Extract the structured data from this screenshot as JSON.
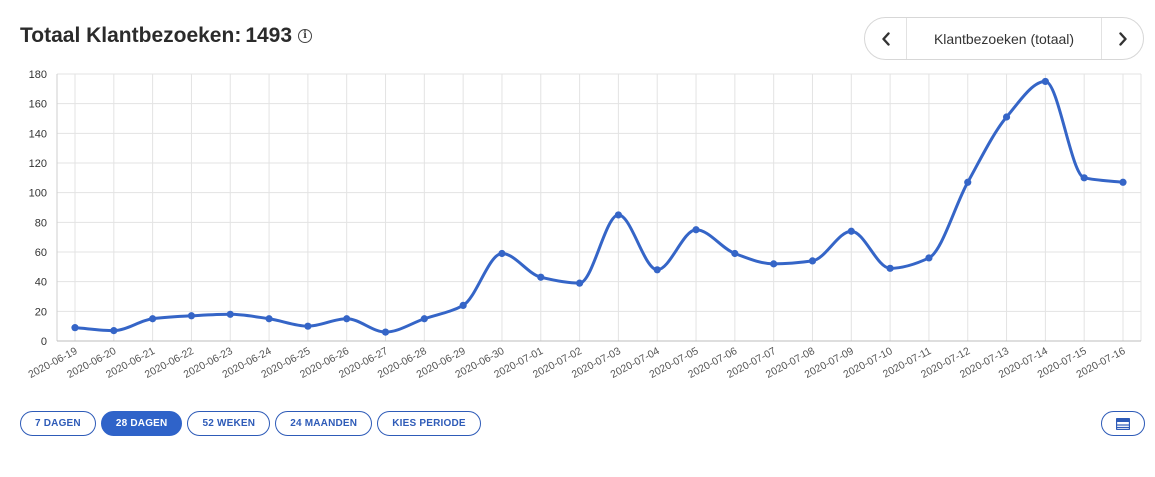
{
  "header": {
    "title": "Totaal Klantbezoeken:",
    "total": "1493"
  },
  "switcher": {
    "label": "Klantbezoeken (totaal)"
  },
  "range_buttons": [
    {
      "label": "7 DAGEN",
      "active": false
    },
    {
      "label": "28 DAGEN",
      "active": true
    },
    {
      "label": "52 WEKEN",
      "active": false
    },
    {
      "label": "24 MAANDEN",
      "active": false
    },
    {
      "label": "KIES PERIODE",
      "active": false
    }
  ],
  "colors": {
    "series": "#3565c7",
    "accent": "#2f63c9",
    "grid": "#e3e3e3"
  },
  "chart_data": {
    "type": "line",
    "smooth": true,
    "grid": true,
    "ylim": [
      0,
      180
    ],
    "yticks": [
      0,
      20,
      40,
      60,
      80,
      100,
      120,
      140,
      160,
      180
    ],
    "x": [
      "2020-06-19",
      "2020-06-20",
      "2020-06-21",
      "2020-06-22",
      "2020-06-23",
      "2020-06-24",
      "2020-06-25",
      "2020-06-26",
      "2020-06-27",
      "2020-06-28",
      "2020-06-29",
      "2020-06-30",
      "2020-07-01",
      "2020-07-02",
      "2020-07-03",
      "2020-07-04",
      "2020-07-05",
      "2020-07-06",
      "2020-07-07",
      "2020-07-08",
      "2020-07-09",
      "2020-07-10",
      "2020-07-11",
      "2020-07-12",
      "2020-07-13",
      "2020-07-14",
      "2020-07-15",
      "2020-07-16"
    ],
    "series": [
      {
        "values": [
          9,
          7,
          15,
          17,
          18,
          15,
          10,
          15,
          6,
          15,
          24,
          59,
          43,
          39,
          85,
          48,
          75,
          59,
          52,
          54,
          74,
          49,
          56,
          107,
          151,
          175,
          110,
          107
        ]
      }
    ]
  }
}
